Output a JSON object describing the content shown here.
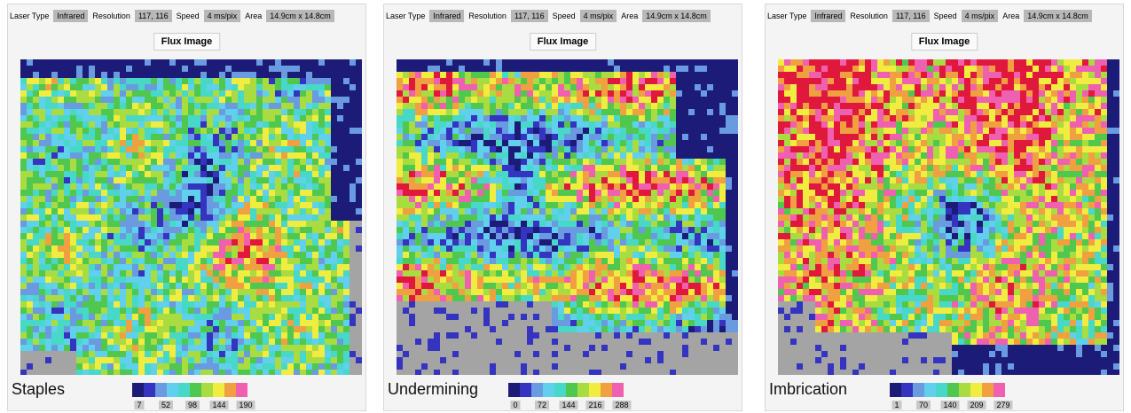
{
  "panels": [
    {
      "header": {
        "laser_type_label": "Laser Type",
        "laser_type": "Infrared",
        "resolution_label": "Resolution",
        "resolution": "117, 116",
        "speed_label": "Speed",
        "speed": "4 ms/pix",
        "area_label": "Area",
        "area": "14.9cm x 14.8cm"
      },
      "button": "Flux Image",
      "caption": "Staples",
      "scale_ticks": [
        7,
        52,
        98,
        144,
        190
      ]
    },
    {
      "header": {
        "laser_type_label": "Laser Type",
        "laser_type": "Infrared",
        "resolution_label": "Resolution",
        "resolution": "117, 116",
        "speed_label": "Speed",
        "speed": "4 ms/pix",
        "area_label": "Area",
        "area": "14.9cm x 14.8cm"
      },
      "button": "Flux Image",
      "caption": "Undermining",
      "scale_ticks": [
        0,
        72,
        144,
        216,
        288
      ]
    },
    {
      "header": {
        "laser_type_label": "Laser Type",
        "laser_type": "Infrared",
        "resolution_label": "Resolution",
        "resolution": "117, 116",
        "speed_label": "Speed",
        "speed": "4 ms/pix",
        "area_label": "Area",
        "area": "14.9cm x 14.8cm"
      },
      "button": "Flux Image",
      "caption": "Imbrication",
      "scale_ticks": [
        1,
        70,
        140,
        209,
        279
      ]
    }
  ]
}
